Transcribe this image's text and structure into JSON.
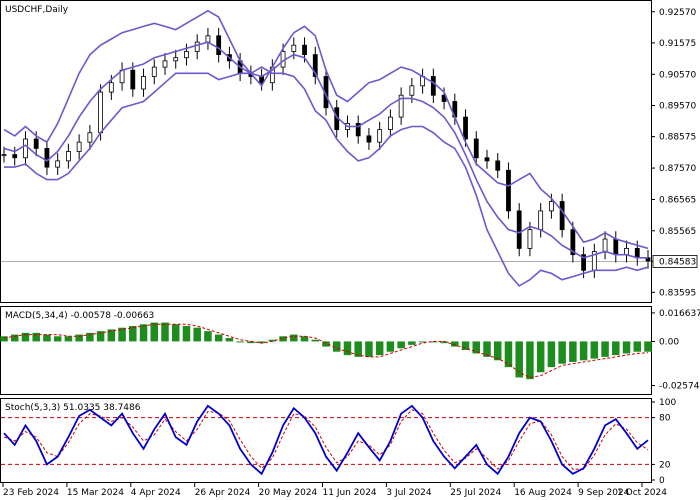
{
  "header": {
    "symbol_timeframe": "USDCHF,Daily",
    "macd_label": "MACD(5,34,4) -0.00578 -0.00663",
    "stoch_label": "Stoch(5,3,3) 51.0335 38.7486"
  },
  "colors": {
    "background": "#ffffff",
    "bollinger": "#6a5acd",
    "candles": "#000000",
    "macd_histogram": "#1e8c1e",
    "macd_signal": "#cc0000",
    "stoch_main": "#0000cc",
    "stoch_signal": "#cc0000",
    "level_lines": "#cc0000"
  },
  "chart_data": [
    {
      "type": "candlestick",
      "panel": "price",
      "title": "USDCHF,Daily",
      "ylim": [
        0.8335,
        0.9285
      ],
      "y_ticks": [
        "0.92570",
        "0.91575",
        "0.90570",
        "0.89570",
        "0.88575",
        "0.87570",
        "0.86565",
        "0.85565",
        "0.84583",
        "0.83595"
      ],
      "current_price": "0.84583",
      "current_price_value": 0.84583,
      "x_labels": [
        "23 Feb 2024",
        "15 Mar 2024",
        "4 Apr 2024",
        "26 Apr 2024",
        "20 May 2024",
        "11 Jun 2024",
        "3 Jul 2024",
        "25 Jul 2024",
        "16 Aug 2024",
        "9 Sep 2024",
        "1 Oct 2024"
      ],
      "close_series": [
        0.88,
        0.879,
        0.885,
        0.882,
        0.876,
        0.878,
        0.881,
        0.884,
        0.887,
        0.9,
        0.903,
        0.907,
        0.901,
        0.905,
        0.908,
        0.91,
        0.911,
        0.913,
        0.916,
        0.918,
        0.912,
        0.91,
        0.906,
        0.905,
        0.903,
        0.908,
        0.913,
        0.915,
        0.912,
        0.905,
        0.895,
        0.888,
        0.89,
        0.886,
        0.884,
        0.888,
        0.892,
        0.899,
        0.902,
        0.905,
        0.899,
        0.897,
        0.892,
        0.885,
        0.879,
        0.878,
        0.875,
        0.862,
        0.85,
        0.856,
        0.862,
        0.865,
        0.856,
        0.848,
        0.843,
        0.849,
        0.853,
        0.848,
        0.85,
        0.847,
        0.846
      ],
      "bollinger_upper": [
        0.888,
        0.886,
        0.889,
        0.886,
        0.884,
        0.89,
        0.898,
        0.906,
        0.912,
        0.915,
        0.917,
        0.919,
        0.92,
        0.921,
        0.922,
        0.921,
        0.92,
        0.922,
        0.924,
        0.926,
        0.924,
        0.917,
        0.91,
        0.906,
        0.902,
        0.908,
        0.914,
        0.919,
        0.921,
        0.918,
        0.907,
        0.899,
        0.897,
        0.9,
        0.903,
        0.904,
        0.906,
        0.908,
        0.907,
        0.905,
        0.903,
        0.9,
        0.892,
        0.884,
        0.877,
        0.874,
        0.871,
        0.87,
        0.872,
        0.874,
        0.869,
        0.866,
        0.862,
        0.857,
        0.852,
        0.853,
        0.855,
        0.853,
        0.852,
        0.851,
        0.85
      ],
      "bollinger_middle": [
        0.882,
        0.881,
        0.883,
        0.88,
        0.878,
        0.881,
        0.886,
        0.892,
        0.897,
        0.901,
        0.904,
        0.907,
        0.908,
        0.909,
        0.911,
        0.912,
        0.913,
        0.914,
        0.915,
        0.916,
        0.914,
        0.911,
        0.908,
        0.906,
        0.905,
        0.907,
        0.91,
        0.912,
        0.911,
        0.906,
        0.899,
        0.892,
        0.889,
        0.889,
        0.891,
        0.893,
        0.896,
        0.898,
        0.898,
        0.897,
        0.895,
        0.892,
        0.887,
        0.88,
        0.872,
        0.865,
        0.86,
        0.856,
        0.855,
        0.857,
        0.856,
        0.854,
        0.851,
        0.849,
        0.847,
        0.848,
        0.849,
        0.848,
        0.848,
        0.847,
        0.847
      ],
      "bollinger_lower": [
        0.876,
        0.876,
        0.877,
        0.874,
        0.872,
        0.872,
        0.874,
        0.878,
        0.882,
        0.887,
        0.891,
        0.895,
        0.896,
        0.897,
        0.9,
        0.903,
        0.906,
        0.906,
        0.906,
        0.906,
        0.904,
        0.905,
        0.906,
        0.906,
        0.908,
        0.906,
        0.906,
        0.905,
        0.901,
        0.894,
        0.891,
        0.885,
        0.881,
        0.878,
        0.879,
        0.882,
        0.886,
        0.888,
        0.889,
        0.889,
        0.887,
        0.884,
        0.882,
        0.876,
        0.867,
        0.856,
        0.849,
        0.842,
        0.838,
        0.84,
        0.843,
        0.842,
        0.84,
        0.841,
        0.842,
        0.843,
        0.843,
        0.843,
        0.844,
        0.843,
        0.844
      ]
    },
    {
      "type": "bar",
      "panel": "macd",
      "title": "MACD(5,34,4) -0.00578 -0.00663",
      "ylim": [
        -0.0295,
        0.0195
      ],
      "y_ticks": [
        "0.016637",
        "0.00",
        "-0.025749"
      ],
      "histogram": [
        0.003,
        0.004,
        0.005,
        0.005,
        0.004,
        0.003,
        0.003,
        0.004,
        0.005,
        0.006,
        0.007,
        0.008,
        0.009,
        0.01,
        0.011,
        0.011,
        0.01,
        0.009,
        0.008,
        0.006,
        0.004,
        0.002,
        0.0,
        -0.001,
        -0.001,
        0.001,
        0.003,
        0.004,
        0.003,
        0.001,
        -0.003,
        -0.006,
        -0.008,
        -0.009,
        -0.009,
        -0.008,
        -0.006,
        -0.004,
        -0.002,
        0.0,
        0.0,
        -0.001,
        -0.003,
        -0.005,
        -0.007,
        -0.009,
        -0.011,
        -0.015,
        -0.021,
        -0.022,
        -0.018,
        -0.015,
        -0.013,
        -0.012,
        -0.011,
        -0.01,
        -0.009,
        -0.008,
        -0.007,
        -0.006,
        -0.006
      ],
      "signal": [
        0.002,
        0.003,
        0.004,
        0.004,
        0.004,
        0.004,
        0.003,
        0.003,
        0.004,
        0.005,
        0.006,
        0.007,
        0.008,
        0.009,
        0.01,
        0.01,
        0.01,
        0.01,
        0.009,
        0.007,
        0.005,
        0.003,
        0.001,
        0.0,
        -0.001,
        0.0,
        0.002,
        0.003,
        0.003,
        0.002,
        -0.001,
        -0.004,
        -0.006,
        -0.008,
        -0.009,
        -0.009,
        -0.007,
        -0.005,
        -0.003,
        -0.001,
        0.0,
        0.0,
        -0.002,
        -0.004,
        -0.006,
        -0.008,
        -0.01,
        -0.013,
        -0.018,
        -0.021,
        -0.02,
        -0.017,
        -0.014,
        -0.013,
        -0.012,
        -0.011,
        -0.01,
        -0.009,
        -0.008,
        -0.007,
        -0.0066
      ]
    },
    {
      "type": "line",
      "panel": "stochastic",
      "title": "Stoch(5,3,3) 51.0335 38.7486",
      "ylim": [
        0,
        100
      ],
      "y_ticks": [
        "100",
        "80",
        "20",
        "0"
      ],
      "levels": [
        80,
        20
      ],
      "main": [
        60,
        45,
        70,
        50,
        20,
        30,
        55,
        82,
        90,
        80,
        70,
        85,
        60,
        40,
        65,
        85,
        55,
        45,
        75,
        95,
        85,
        70,
        40,
        20,
        8,
        35,
        70,
        92,
        80,
        60,
        30,
        12,
        35,
        60,
        42,
        25,
        50,
        85,
        95,
        80,
        50,
        30,
        15,
        30,
        45,
        20,
        8,
        30,
        60,
        80,
        75,
        50,
        20,
        8,
        15,
        40,
        70,
        78,
        60,
        40,
        51
      ],
      "signal": [
        55,
        50,
        62,
        55,
        35,
        30,
        48,
        72,
        85,
        82,
        75,
        80,
        68,
        50,
        58,
        78,
        62,
        50,
        65,
        88,
        86,
        76,
        52,
        30,
        15,
        28,
        58,
        85,
        82,
        68,
        42,
        22,
        30,
        50,
        45,
        32,
        45,
        75,
        90,
        85,
        60,
        38,
        22,
        28,
        40,
        28,
        14,
        25,
        50,
        72,
        76,
        58,
        30,
        14,
        14,
        32,
        58,
        72,
        65,
        48,
        38.7
      ]
    }
  ]
}
